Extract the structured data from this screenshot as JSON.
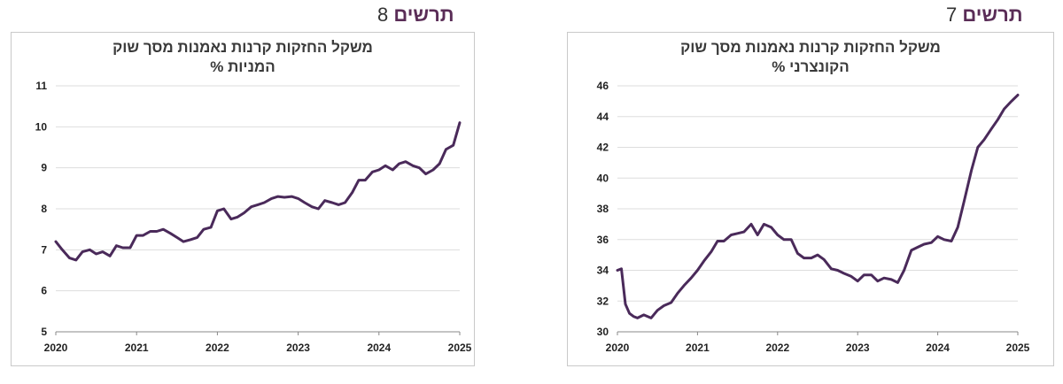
{
  "figures": [
    {
      "id": "fig8",
      "title_word": "תרשים",
      "title_number": "8",
      "chart_title_line1": "משקל החזקות קרנות נאמנות מסך שוק",
      "chart_title_line2": "המניות %"
    },
    {
      "id": "fig7",
      "title_word": "תרשים",
      "title_number": "7",
      "chart_title_line1": "משקל החזקות קרנות נאמנות מסך שוק",
      "chart_title_line2": "הקונצרני %"
    }
  ],
  "colors": {
    "line": "#4a2a5a",
    "grid": "#dddddd",
    "axis": "#888888"
  },
  "chart_data": [
    {
      "type": "line",
      "title": "משקל החזקות קרנות נאמנות מסך שוק המניות %",
      "xlim": [
        2020,
        2025
      ],
      "ylim": [
        5,
        11
      ],
      "x_ticks": [
        "2020",
        "2021",
        "2022",
        "2023",
        "2024",
        "2025"
      ],
      "y_ticks": [
        "5",
        "6",
        "7",
        "8",
        "9",
        "10",
        "11"
      ],
      "grid": true,
      "series": [
        {
          "x": [
            2020.0,
            2020.08,
            2020.17,
            2020.25,
            2020.33,
            2020.42,
            2020.5,
            2020.58,
            2020.67,
            2020.75,
            2020.83,
            2020.92,
            2021.0,
            2021.08,
            2021.17,
            2021.25,
            2021.33,
            2021.42,
            2021.5,
            2021.58,
            2021.67,
            2021.75,
            2021.83,
            2021.92,
            2022.0,
            2022.08,
            2022.17,
            2022.25,
            2022.33,
            2022.42,
            2022.5,
            2022.58,
            2022.67,
            2022.75,
            2022.83,
            2022.92,
            2023.0,
            2023.08,
            2023.17,
            2023.25,
            2023.33,
            2023.42,
            2023.5,
            2023.58,
            2023.67,
            2023.75,
            2023.83,
            2023.92,
            2024.0,
            2024.08,
            2024.17,
            2024.25,
            2024.33,
            2024.42,
            2024.5,
            2024.58,
            2024.67,
            2024.75,
            2024.83,
            2024.92,
            2025.0
          ],
          "y": [
            7.2,
            7.0,
            6.8,
            6.75,
            6.95,
            7.0,
            6.9,
            6.95,
            6.85,
            7.1,
            7.05,
            7.05,
            7.35,
            7.35,
            7.45,
            7.45,
            7.5,
            7.4,
            7.3,
            7.2,
            7.25,
            7.3,
            7.5,
            7.55,
            7.95,
            8.0,
            7.75,
            7.8,
            7.9,
            8.05,
            8.1,
            8.15,
            8.25,
            8.3,
            8.28,
            8.3,
            8.25,
            8.15,
            8.05,
            8.0,
            8.2,
            8.15,
            8.1,
            8.15,
            8.4,
            8.7,
            8.7,
            8.9,
            8.95,
            9.05,
            8.95,
            9.1,
            9.15,
            9.05,
            9.0,
            8.85,
            8.95,
            9.1,
            9.45,
            9.55,
            10.1
          ]
        }
      ]
    },
    {
      "type": "line",
      "title": "משקל החזקות קרנות נאמנות מסך שוק הקונצרני %",
      "xlim": [
        2020,
        2025
      ],
      "ylim": [
        30,
        46
      ],
      "x_ticks": [
        "2020",
        "2021",
        "2022",
        "2023",
        "2024",
        "2025"
      ],
      "y_ticks": [
        "30",
        "32",
        "34",
        "36",
        "38",
        "40",
        "42",
        "44",
        "46"
      ],
      "grid": true,
      "series": [
        {
          "x": [
            2020.0,
            2020.05,
            2020.1,
            2020.15,
            2020.2,
            2020.25,
            2020.33,
            2020.42,
            2020.5,
            2020.58,
            2020.67,
            2020.75,
            2020.83,
            2020.92,
            2021.0,
            2021.08,
            2021.17,
            2021.25,
            2021.33,
            2021.42,
            2021.5,
            2021.58,
            2021.67,
            2021.75,
            2021.83,
            2021.92,
            2022.0,
            2022.08,
            2022.17,
            2022.25,
            2022.33,
            2022.42,
            2022.5,
            2022.58,
            2022.67,
            2022.75,
            2022.83,
            2022.92,
            2023.0,
            2023.08,
            2023.17,
            2023.25,
            2023.33,
            2023.42,
            2023.5,
            2023.58,
            2023.67,
            2023.75,
            2023.83,
            2023.92,
            2024.0,
            2024.08,
            2024.17,
            2024.25,
            2024.33,
            2024.42,
            2024.5,
            2024.58,
            2024.67,
            2024.75,
            2024.83,
            2024.92,
            2025.0
          ],
          "y": [
            34.0,
            34.1,
            31.8,
            31.2,
            31.0,
            30.9,
            31.1,
            30.9,
            31.4,
            31.7,
            31.9,
            32.5,
            33.0,
            33.5,
            34.0,
            34.6,
            35.2,
            35.9,
            35.9,
            36.3,
            36.4,
            36.5,
            37.0,
            36.3,
            37.0,
            36.8,
            36.3,
            36.0,
            36.0,
            35.1,
            34.8,
            34.8,
            35.0,
            34.7,
            34.1,
            34.0,
            33.8,
            33.6,
            33.3,
            33.7,
            33.7,
            33.3,
            33.5,
            33.4,
            33.2,
            34.0,
            35.3,
            35.5,
            35.7,
            35.8,
            36.2,
            36.0,
            35.9,
            36.8,
            38.5,
            40.5,
            42.0,
            42.5,
            43.2,
            43.8,
            44.5,
            45.0,
            45.4
          ]
        }
      ]
    }
  ]
}
